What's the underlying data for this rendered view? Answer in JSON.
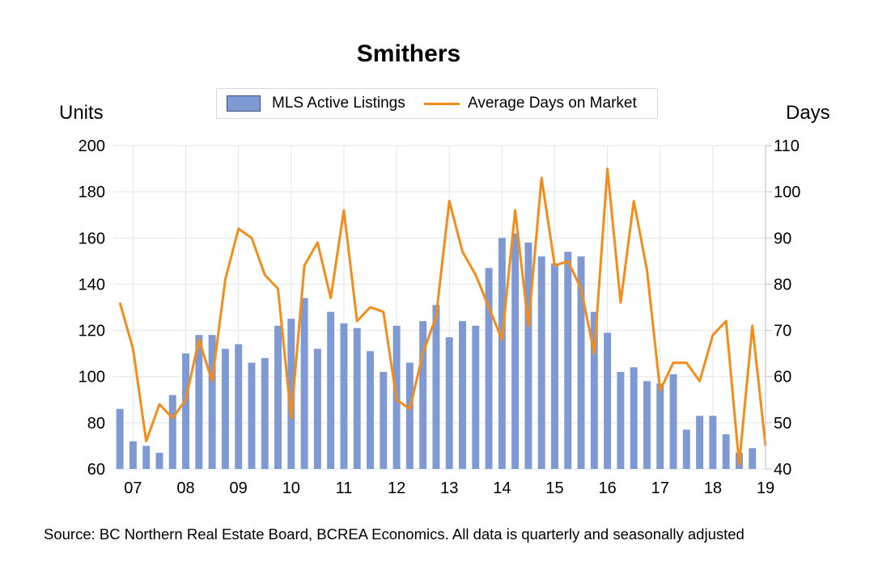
{
  "chart_data": {
    "type": "bar",
    "title": "Smithers",
    "y_left_label": "Units",
    "y_right_label": "Days",
    "y_left_lim": [
      60,
      200
    ],
    "y_right_lim": [
      40,
      110
    ],
    "y_left_ticks": [
      "60",
      "80",
      "100",
      "120",
      "140",
      "160",
      "180",
      "200"
    ],
    "y_right_ticks": [
      "40",
      "50",
      "60",
      "70",
      "80",
      "90",
      "100",
      "110"
    ],
    "x_tick_labels": [
      "07",
      "08",
      "09",
      "10",
      "11",
      "12",
      "13",
      "14",
      "15",
      "16",
      "17",
      "18",
      "19"
    ],
    "x_tick_start_index": 1,
    "x_tick_step": 4,
    "grid": "horizontal",
    "legend_position": "top-center",
    "series": [
      {
        "name": "MLS Active Listings",
        "type": "bar",
        "axis": "left",
        "color": "#7f9ad3",
        "values": [
          86,
          72,
          70,
          67,
          92,
          110,
          118,
          118,
          112,
          114,
          106,
          108,
          122,
          125,
          134,
          112,
          128,
          123,
          121,
          111,
          102,
          122,
          106,
          124,
          131,
          117,
          124,
          122,
          147,
          160,
          162,
          158,
          152,
          149,
          154,
          152,
          128,
          119,
          102,
          104,
          98,
          97,
          101,
          77,
          83,
          83,
          75,
          67,
          69
        ]
      },
      {
        "name": "Average Days on Market",
        "type": "line",
        "axis": "right",
        "color": "#f28c1b",
        "values": [
          76,
          66,
          46,
          54,
          51,
          55,
          68,
          59,
          81,
          92,
          90,
          82,
          79,
          51,
          84,
          89,
          77,
          96,
          72,
          75,
          74,
          55,
          53,
          65,
          73,
          98,
          87,
          82,
          75,
          68,
          96,
          71,
          103,
          84,
          85,
          79,
          65,
          105,
          76,
          98,
          83,
          57,
          63,
          63,
          59,
          69,
          72,
          41,
          71,
          45
        ]
      }
    ],
    "source_note": "Source: BC Northern Real Estate Board, BCREA Economics. All data is quarterly and seasonally adjusted"
  }
}
